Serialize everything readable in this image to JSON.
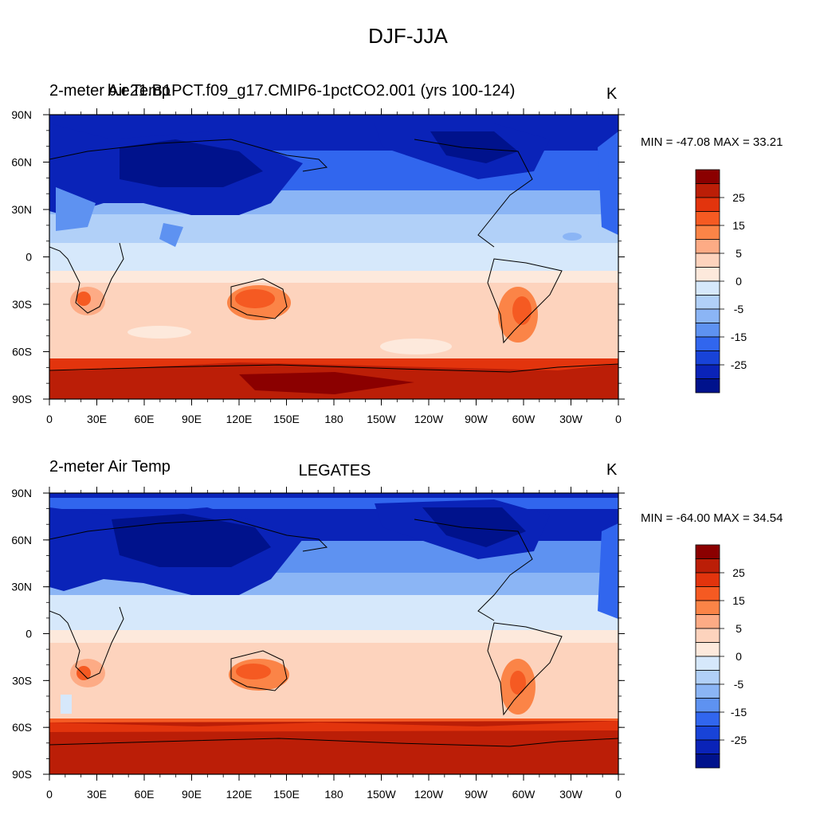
{
  "page_title": "DJF-JJA",
  "colorbar": {
    "labels": [
      "25",
      "15",
      "5",
      "0",
      "-5",
      "-15",
      "-25"
    ],
    "colors": [
      "#8b0000",
      "#bb1e07",
      "#e2340d",
      "#f55a22",
      "#fb8447",
      "#fdab85",
      "#fdd3bd",
      "#fde9dc",
      "#d6e8fb",
      "#b1d0f8",
      "#8bb5f5",
      "#5e92f1",
      "#3166ee",
      "#1843d8",
      "#0a23b8",
      "#00128c"
    ]
  },
  "x_tick_labels": [
    "0",
    "30E",
    "60E",
    "90E",
    "120E",
    "150E",
    "180",
    "150W",
    "120W",
    "90W",
    "60W",
    "30W",
    "0"
  ],
  "y_tick_labels": [
    "90N",
    "60N",
    "30N",
    "0",
    "30S",
    "60S",
    "90S"
  ],
  "panels": [
    {
      "left_title": "2-meter Air Temp",
      "center_title": "b.e21.B1PCT.f09_g17.CMIP6-1pctCO2.001 (yrs 100-124)",
      "units": "K",
      "minmax": "MIN = -47.08 MAX =  33.21"
    },
    {
      "left_title": "2-meter Air Temp",
      "center_title": "LEGATES",
      "units": "K",
      "minmax": "MIN = -64.00 MAX =  34.54"
    }
  ]
}
